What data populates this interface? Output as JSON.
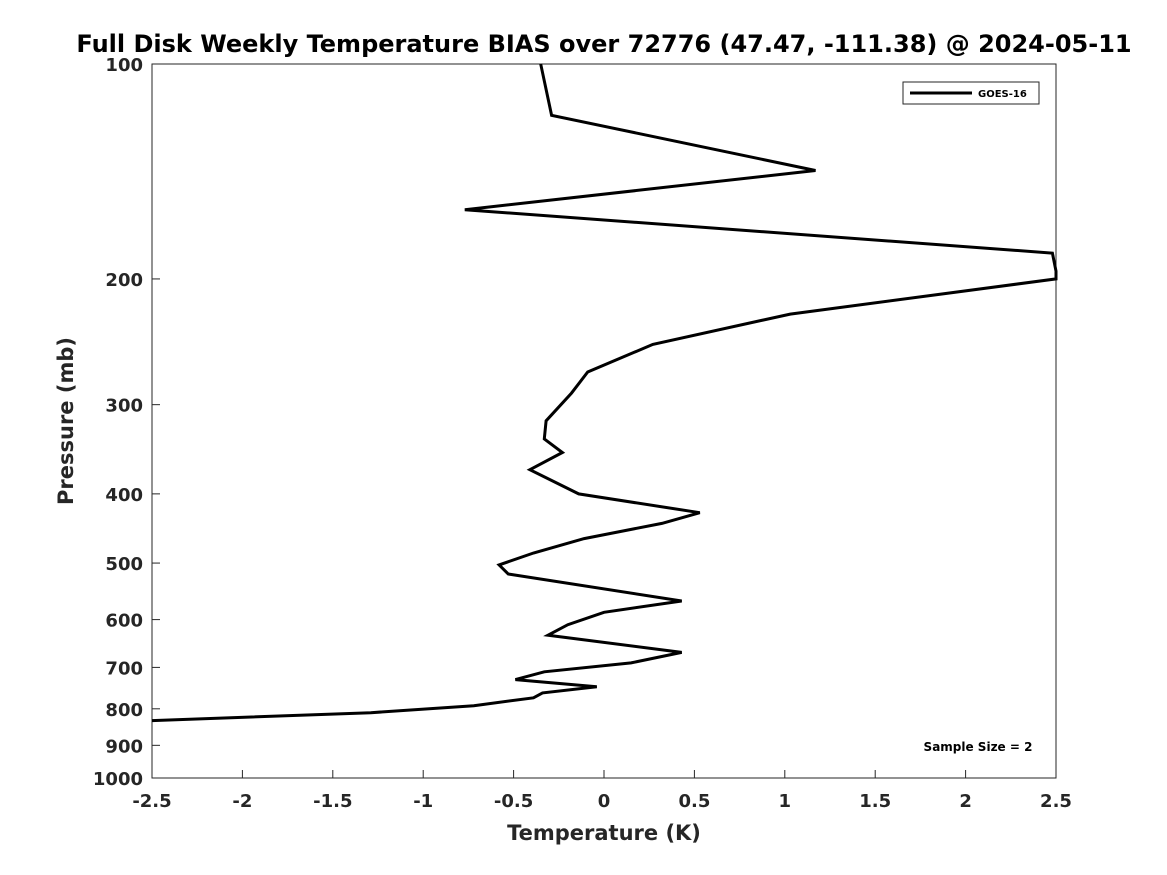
{
  "chart_data": {
    "type": "line",
    "title": "Full Disk Weekly Temperature BIAS over 72776 (47.47, -111.38) @ 2024-05-11",
    "xlabel": "Temperature (K)",
    "ylabel": "Pressure (mb)",
    "xlim": [
      -2.5,
      2.5
    ],
    "ylim": [
      100,
      1000
    ],
    "yscale": "log",
    "yreversed": true,
    "grid": false,
    "legend_position": "top-right",
    "x_ticks": [
      -2.5,
      -2,
      -1.5,
      -1,
      -0.5,
      0,
      0.5,
      1,
      1.5,
      2,
      2.5
    ],
    "x_tick_labels": [
      "-2.5",
      "-2",
      "-1.5",
      "-1",
      "-0.5",
      "0",
      "0.5",
      "1",
      "1.5",
      "2",
      "2.5"
    ],
    "y_ticks": [
      100,
      200,
      300,
      400,
      500,
      600,
      700,
      800,
      900,
      1000
    ],
    "y_tick_labels": [
      "100",
      "200",
      "300",
      "400",
      "500",
      "600",
      "700",
      "800",
      "900",
      "1000"
    ],
    "annotation": "Sample Size = 2",
    "series": [
      {
        "name": "GOES-16",
        "color": "#000000",
        "x": [
          -0.35,
          -0.29,
          1.17,
          -0.77,
          2.48,
          2.5,
          2.5,
          1.03,
          0.27,
          -0.09,
          -0.18,
          -0.32,
          -0.33,
          -0.23,
          -0.41,
          -0.14,
          0.53,
          0.32,
          -0.11,
          -0.39,
          -0.58,
          -0.53,
          0.43,
          0.0,
          -0.2,
          -0.31,
          0.43,
          0.15,
          -0.33,
          -0.49,
          -0.04,
          -0.34,
          -0.39,
          -0.72,
          -1.29,
          -2.5
        ],
        "y": [
          100,
          118,
          141,
          160,
          184,
          195,
          200,
          224,
          247,
          270,
          289,
          316,
          335,
          350,
          370,
          400,
          425,
          440,
          462,
          484,
          503,
          518,
          565,
          586,
          610,
          631,
          667,
          690,
          710,
          728,
          745,
          760,
          772,
          792,
          810,
          831
        ]
      }
    ]
  }
}
